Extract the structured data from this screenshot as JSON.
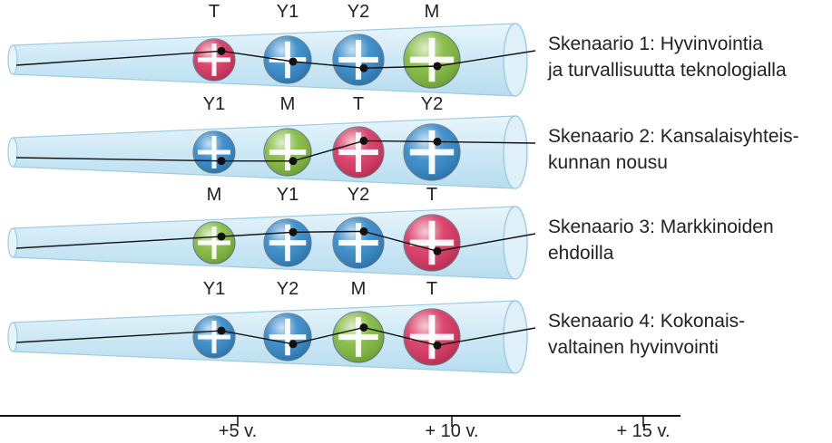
{
  "colors": {
    "T": "#d8325e",
    "Y1": "#2f86c8",
    "Y2": "#2f86c8",
    "M": "#80b83a",
    "tube": "#cfe9f6",
    "tube_edge": "#9ccbe3",
    "line": "#111111"
  },
  "scenarios": [
    {
      "label_lines": [
        "Skenaario 1: Hyvinvointia",
        "ja turvallisuutta teknologialla"
      ],
      "nodes": [
        {
          "letter": "T",
          "value": 0.78
        },
        {
          "letter": "Y1",
          "value": 0.45
        },
        {
          "letter": "Y2",
          "value": 0.28
        },
        {
          "letter": "M",
          "value": 0.35
        }
      ]
    },
    {
      "label_lines": [
        "Skenaario 2: Kansalaisyhteis-",
        "kunnan nousu"
      ],
      "nodes": [
        {
          "letter": "Y1",
          "value": 0.22
        },
        {
          "letter": "M",
          "value": 0.25
        },
        {
          "letter": "T",
          "value": 0.8
        },
        {
          "letter": "Y2",
          "value": 0.75
        }
      ]
    },
    {
      "label_lines": [
        "Skenaario 3: Markkinoiden",
        "ehdoilla"
      ],
      "nodes": [
        {
          "letter": "M",
          "value": 0.7
        },
        {
          "letter": "Y1",
          "value": 0.8
        },
        {
          "letter": "Y2",
          "value": 0.8
        },
        {
          "letter": "T",
          "value": 0.3
        }
      ]
    },
    {
      "label_lines": [
        "Skenaario 4: Kokonais-",
        "valtainen hyvinvointi"
      ],
      "nodes": [
        {
          "letter": "Y1",
          "value": 0.7
        },
        {
          "letter": "Y2",
          "value": 0.3
        },
        {
          "letter": "M",
          "value": 0.75
        },
        {
          "letter": "T",
          "value": 0.3
        }
      ]
    }
  ],
  "timeline": {
    "ticks": [
      "+5 v.",
      "+ 10 v.",
      "+ 15 v."
    ]
  }
}
